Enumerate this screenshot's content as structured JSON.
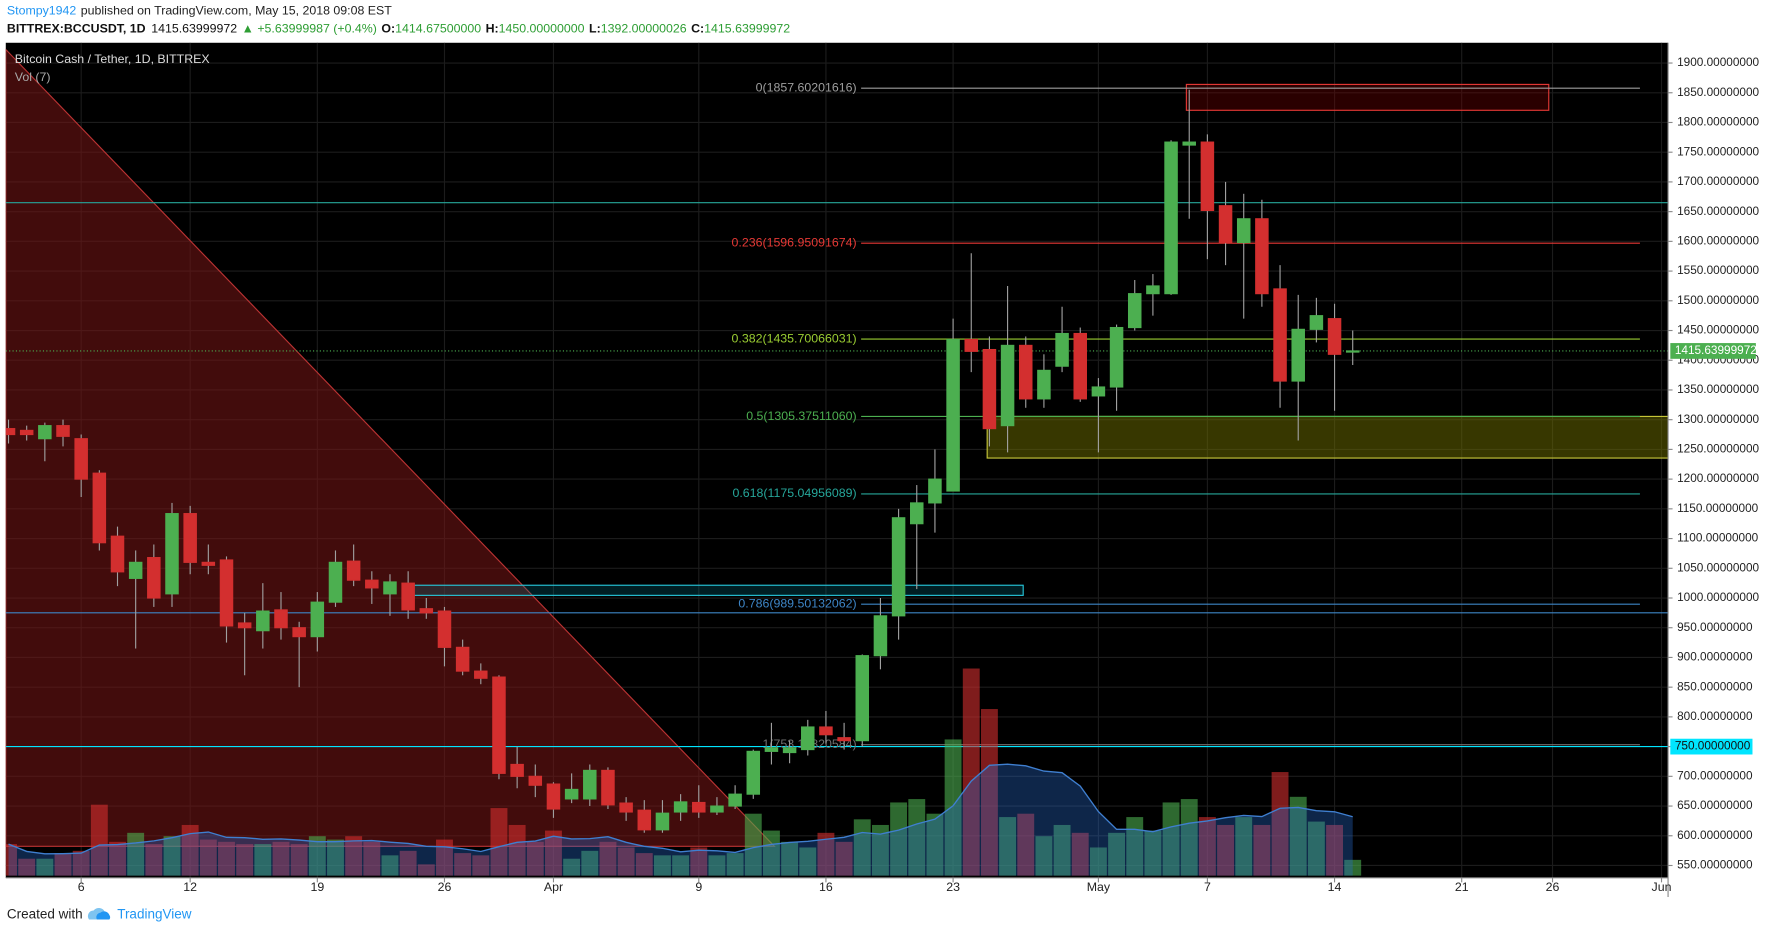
{
  "header": {
    "author": "Stompy1942",
    "published": "published on TradingView.com, May 15, 2018 09:08 EST",
    "symbol": "BITTREX:BCCUSDT, 1D",
    "last": "1415.63999972",
    "change": "▲ +5.63999987 (+0.4%)",
    "ohlc": [
      {
        "key": "O:",
        "value": "1414.67500000"
      },
      {
        "key": "H:",
        "value": "1450.00000000"
      },
      {
        "key": "L:",
        "value": "1392.00000026"
      },
      {
        "key": "C:",
        "value": "1415.63999972"
      }
    ]
  },
  "footer": {
    "created": "Created with",
    "brand": "TradingView"
  },
  "chart_data": {
    "type": "candlestick",
    "title": "Bitcoin Cash / Tether, 1D, BITTREX",
    "volume_title": "Vol (7)",
    "up_color": "#4caf50",
    "down_color": "#d32f2f",
    "wick_color": "#a0a0a0",
    "grid": true,
    "x": [
      "03-02",
      "03-03",
      "03-04",
      "03-05",
      "03-06",
      "03-07",
      "03-08",
      "03-09",
      "03-10",
      "03-11",
      "03-12",
      "03-13",
      "03-14",
      "03-15",
      "03-16",
      "03-17",
      "03-18",
      "03-19",
      "03-20",
      "03-21",
      "03-22",
      "03-23",
      "03-24",
      "03-25",
      "03-26",
      "03-27",
      "03-28",
      "03-29",
      "03-30",
      "03-31",
      "04-01",
      "04-02",
      "04-03",
      "04-04",
      "04-05",
      "04-06",
      "04-07",
      "04-08",
      "04-09",
      "04-10",
      "04-11",
      "04-12",
      "04-13",
      "04-14",
      "04-15",
      "04-16",
      "04-17",
      "04-18",
      "04-19",
      "04-20",
      "04-21",
      "04-22",
      "04-23",
      "04-24",
      "04-25",
      "04-26",
      "04-27",
      "04-28",
      "04-29",
      "04-30",
      "05-01",
      "05-02",
      "05-03",
      "05-04",
      "05-05",
      "05-06",
      "05-07",
      "05-08",
      "05-09",
      "05-10",
      "05-11",
      "05-12",
      "05-13",
      "05-14",
      "05-15"
    ],
    "open": [
      1285,
      1282,
      1268,
      1290,
      1268,
      1210,
      1104,
      1033,
      1068,
      1007,
      1142,
      1060,
      1064,
      958,
      945,
      980,
      950,
      935,
      993,
      1062,
      1030,
      1007,
      1025,
      982,
      978,
      917,
      877,
      867,
      720,
      700,
      687,
      662,
      662,
      710,
      655,
      643,
      610,
      640,
      656,
      640,
      650,
      670,
      742,
      740,
      745,
      783,
      765,
      760,
      903,
      970,
      1125,
      1160,
      1180,
      1435,
      1418,
      1290,
      1425,
      1335,
      1390,
      1445,
      1340,
      1355,
      1455,
      1512,
      1512,
      1762,
      1767,
      1660,
      1598,
      1638,
      1520,
      1365,
      1452,
      1470,
      1414.675
    ],
    "high": [
      1300,
      1290,
      1295,
      1300,
      1275,
      1215,
      1120,
      1080,
      1090,
      1160,
      1155,
      1090,
      1070,
      975,
      1025,
      1010,
      960,
      1010,
      1080,
      1090,
      1045,
      1040,
      1045,
      1000,
      985,
      930,
      890,
      870,
      750,
      720,
      690,
      705,
      720,
      715,
      665,
      660,
      660,
      670,
      685,
      665,
      685,
      745,
      790,
      760,
      795,
      810,
      790,
      905,
      1000,
      1150,
      1190,
      1250,
      1470,
      1580,
      1440,
      1525,
      1440,
      1410,
      1490,
      1455,
      1370,
      1460,
      1535,
      1545,
      1770,
      1855,
      1780,
      1700,
      1680,
      1670,
      1560,
      1510,
      1505,
      1495,
      1450
    ],
    "low": [
      1260,
      1265,
      1230,
      1255,
      1170,
      1080,
      1020,
      915,
      985,
      985,
      1040,
      1040,
      925,
      870,
      915,
      930,
      850,
      910,
      985,
      1020,
      990,
      970,
      965,
      965,
      885,
      870,
      855,
      695,
      680,
      665,
      630,
      655,
      650,
      645,
      625,
      605,
      605,
      625,
      630,
      635,
      645,
      662,
      720,
      722,
      735,
      755,
      745,
      750,
      880,
      930,
      1015,
      1110,
      1180,
      1380,
      1255,
      1245,
      1320,
      1320,
      1380,
      1330,
      1245,
      1315,
      1450,
      1475,
      1510,
      1638,
      1570,
      1560,
      1470,
      1490,
      1320,
      1265,
      1430,
      1315,
      1392.00000026
    ],
    "close": [
      1275,
      1275,
      1290,
      1272,
      1200,
      1093,
      1044,
      1060,
      1000,
      1142,
      1060,
      1055,
      953,
      950,
      978,
      950,
      935,
      993,
      1060,
      1030,
      1017,
      1027,
      980,
      975,
      917,
      877,
      865,
      705,
      700,
      685,
      645,
      678,
      710,
      652,
      640,
      610,
      638,
      657,
      640,
      650,
      670,
      742,
      748,
      748,
      783,
      770,
      760,
      903,
      970,
      1135,
      1160,
      1200,
      1435,
      1415,
      1285,
      1425,
      1335,
      1383,
      1445,
      1335,
      1355,
      1455,
      1512,
      1525,
      1767,
      1767,
      1652,
      1598,
      1638,
      1512,
      1365,
      1452,
      1475,
      1410,
      1415.63999972
    ],
    "volume": [
      28,
      15,
      15,
      20,
      22,
      63,
      30,
      38,
      28,
      35,
      45,
      32,
      30,
      28,
      28,
      30,
      28,
      35,
      32,
      35,
      30,
      18,
      22,
      10,
      32,
      20,
      18,
      60,
      45,
      30,
      40,
      15,
      22,
      30,
      25,
      20,
      18,
      18,
      25,
      18,
      20,
      55,
      40,
      30,
      25,
      38,
      30,
      50,
      45,
      65,
      68,
      55,
      121,
      184,
      148,
      52,
      55,
      35,
      45,
      38,
      25,
      38,
      52,
      40,
      65,
      68,
      52,
      45,
      52,
      45,
      92,
      70,
      48,
      45,
      14
    ],
    "ylim": [
      529.2,
      1934.1
    ],
    "yticks": [
      {
        "value": 550,
        "label": "550.00000000"
      },
      {
        "value": 600,
        "label": "600.00000000"
      },
      {
        "value": 650,
        "label": "650.00000000"
      },
      {
        "value": 700,
        "label": "700.00000000"
      },
      {
        "value": 750,
        "label": "750.00000000"
      },
      {
        "value": 800,
        "label": "800.00000000"
      },
      {
        "value": 850,
        "label": "850.00000000"
      },
      {
        "value": 900,
        "label": "900.00000000"
      },
      {
        "value": 950,
        "label": "950.00000000"
      },
      {
        "value": 1000,
        "label": "1000.00000000"
      },
      {
        "value": 1050,
        "label": "1050.00000000"
      },
      {
        "value": 1100,
        "label": "1100.00000000"
      },
      {
        "value": 1150,
        "label": "1150.00000000"
      },
      {
        "value": 1200,
        "label": "1200.00000000"
      },
      {
        "value": 1250,
        "label": "1250.00000000"
      },
      {
        "value": 1300,
        "label": "1300.00000000"
      },
      {
        "value": 1350,
        "label": "1350.00000000"
      },
      {
        "value": 1400,
        "label": "1400.00000000"
      },
      {
        "value": 1450,
        "label": "1450.00000000"
      },
      {
        "value": 1500,
        "label": "1500.00000000"
      },
      {
        "value": 1550,
        "label": "1550.00000000"
      },
      {
        "value": 1600,
        "label": "1600.00000000"
      },
      {
        "value": 1650,
        "label": "1650.00000000"
      },
      {
        "value": 1700,
        "label": "1700.00000000"
      },
      {
        "value": 1750,
        "label": "1750.00000000"
      },
      {
        "value": 1800,
        "label": "1800.00000000"
      },
      {
        "value": 1850,
        "label": "1850.00000000"
      },
      {
        "value": 1900,
        "label": "1900.00000000"
      }
    ],
    "xticks": [
      {
        "value": "03-06",
        "label": "6"
      },
      {
        "value": "03-12",
        "label": "12"
      },
      {
        "value": "03-19",
        "label": "19"
      },
      {
        "value": "03-26",
        "label": "26"
      },
      {
        "value": "04-01",
        "label": "Apr"
      },
      {
        "value": "04-09",
        "label": "9"
      },
      {
        "value": "04-16",
        "label": "16"
      },
      {
        "value": "04-23",
        "label": "23"
      },
      {
        "value": "05-01",
        "label": "May"
      },
      {
        "value": "05-07",
        "label": "7"
      },
      {
        "value": "05-14",
        "label": "14"
      },
      {
        "value": "05-21",
        "label": "21"
      },
      {
        "value": "05-26",
        "label": "26"
      },
      {
        "value": "06-01",
        "label": "Jun"
      }
    ],
    "fib": [
      {
        "value": 1857.60201616,
        "label": "0(1857.60201616)",
        "color": "#9e9e9e"
      },
      {
        "value": 1596.95091674,
        "label": "0.236(1596.95091674)",
        "color": "#e53935"
      },
      {
        "value": 1435.70066031,
        "label": "0.382(1435.70066031)",
        "color": "#9acd32"
      },
      {
        "value": 1305.3751106,
        "label": "0.5(1305.37511060)",
        "color": "#4caf50"
      },
      {
        "value": 1175.04956089,
        "label": "0.618(1175.04956089)",
        "color": "#26a69a"
      },
      {
        "value": 989.50132062,
        "label": "0.786(989.50132062)",
        "color": "#3d85c6"
      },
      {
        "value": 753.14820584,
        "label": "1(753.14820584)",
        "color": "#707070"
      }
    ],
    "hlines": [
      {
        "value": 1665,
        "color": "#26a69a"
      },
      {
        "value": 975,
        "color": "#3d85c6"
      },
      {
        "value": 750,
        "label": "750.00000000",
        "color": "#00e5ff"
      }
    ],
    "last_price": {
      "value": 1415.63999972,
      "label": "1415.63999972",
      "color": "#4caf50"
    }
  }
}
